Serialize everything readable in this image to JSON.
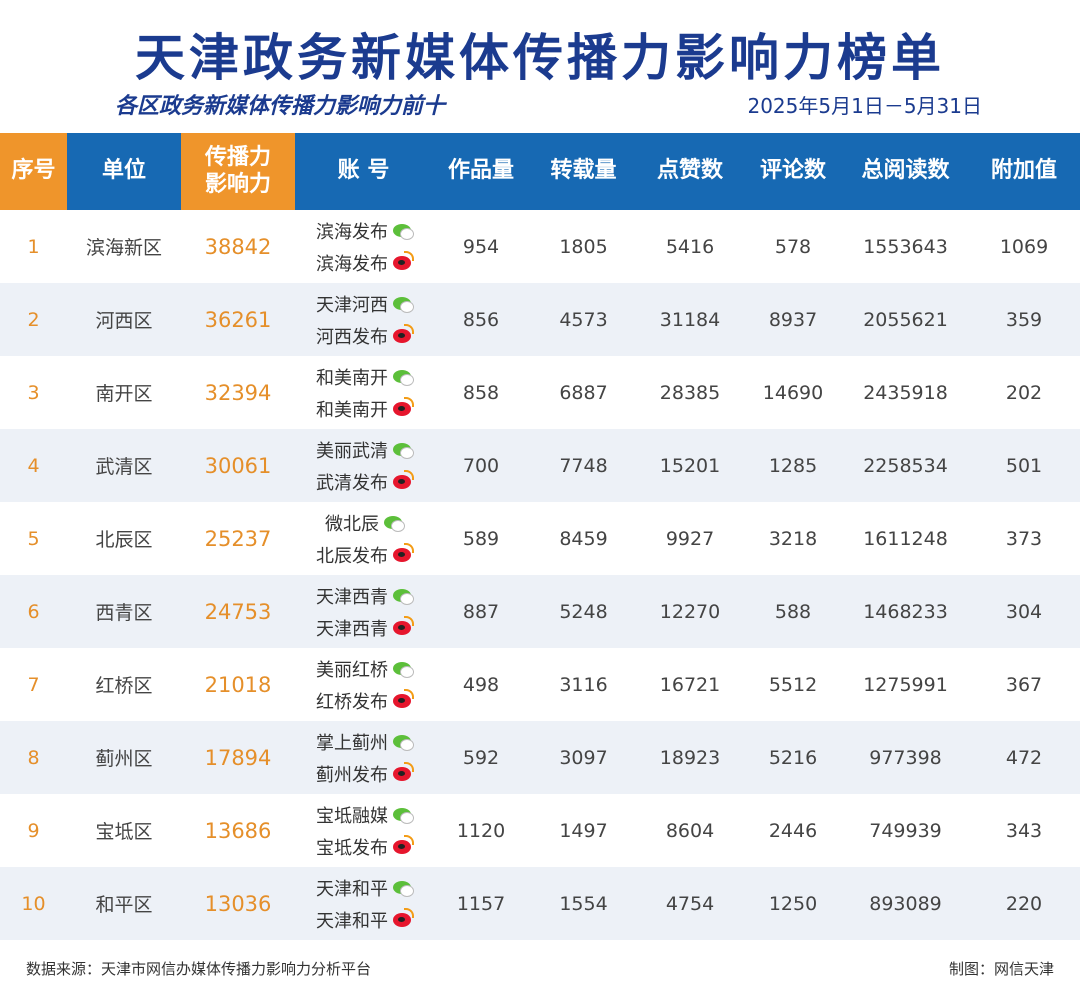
{
  "title": "天津政务新媒体传播力影响力榜单",
  "subtitle": "各区政务新媒体传播力影响力前十",
  "date_range": "2025年5月1日－5月31日",
  "colors": {
    "header_blue": "#1769b3",
    "header_orange": "#ef952b",
    "title_navy": "#1b3b8f",
    "accent_orange": "#e58f2a"
  },
  "columns": [
    "序号",
    "单位",
    "传播力影响力",
    "账 号",
    "作品量",
    "转载量",
    "点赞数",
    "评论数",
    "总阅读数",
    "附加值"
  ],
  "rows": [
    {
      "rank": "1",
      "unit": "滨海新区",
      "score": "38842",
      "wechat": "滨海发布",
      "weibo": "滨海发布",
      "works": "954",
      "reposts": "1805",
      "likes": "5416",
      "comments": "578",
      "reads": "1553643",
      "bonus": "1069"
    },
    {
      "rank": "2",
      "unit": "河西区",
      "score": "36261",
      "wechat": "天津河西",
      "weibo": "河西发布",
      "works": "856",
      "reposts": "4573",
      "likes": "31184",
      "comments": "8937",
      "reads": "2055621",
      "bonus": "359"
    },
    {
      "rank": "3",
      "unit": "南开区",
      "score": "32394",
      "wechat": "和美南开",
      "weibo": "和美南开",
      "works": "858",
      "reposts": "6887",
      "likes": "28385",
      "comments": "14690",
      "reads": "2435918",
      "bonus": "202"
    },
    {
      "rank": "4",
      "unit": "武清区",
      "score": "30061",
      "wechat": "美丽武清",
      "weibo": "武清发布",
      "works": "700",
      "reposts": "7748",
      "likes": "15201",
      "comments": "1285",
      "reads": "2258534",
      "bonus": "501"
    },
    {
      "rank": "5",
      "unit": "北辰区",
      "score": "25237",
      "wechat": "微北辰",
      "weibo": "北辰发布",
      "works": "589",
      "reposts": "8459",
      "likes": "9927",
      "comments": "3218",
      "reads": "1611248",
      "bonus": "373"
    },
    {
      "rank": "6",
      "unit": "西青区",
      "score": "24753",
      "wechat": "天津西青",
      "weibo": "天津西青",
      "works": "887",
      "reposts": "5248",
      "likes": "12270",
      "comments": "588",
      "reads": "1468233",
      "bonus": "304"
    },
    {
      "rank": "7",
      "unit": "红桥区",
      "score": "21018",
      "wechat": "美丽红桥",
      "weibo": "红桥发布",
      "works": "498",
      "reposts": "3116",
      "likes": "16721",
      "comments": "5512",
      "reads": "1275991",
      "bonus": "367"
    },
    {
      "rank": "8",
      "unit": "蓟州区",
      "score": "17894",
      "wechat": "掌上蓟州",
      "weibo": "蓟州发布",
      "works": "592",
      "reposts": "3097",
      "likes": "18923",
      "comments": "5216",
      "reads": "977398",
      "bonus": "472"
    },
    {
      "rank": "9",
      "unit": "宝坻区",
      "score": "13686",
      "wechat": "宝坻融媒",
      "weibo": "宝坻发布",
      "works": "1120",
      "reposts": "1497",
      "likes": "8604",
      "comments": "2446",
      "reads": "749939",
      "bonus": "343"
    },
    {
      "rank": "10",
      "unit": "和平区",
      "score": "13036",
      "wechat": "天津和平",
      "weibo": "天津和平",
      "works": "1157",
      "reposts": "1554",
      "likes": "4754",
      "comments": "1250",
      "reads": "893089",
      "bonus": "220"
    }
  ],
  "footer": {
    "source": "数据来源：天津市网信办媒体传播力影响力分析平台",
    "credit": "制图：网信天津"
  },
  "icons": {
    "wechat": "wechat-icon",
    "weibo": "weibo-icon"
  }
}
